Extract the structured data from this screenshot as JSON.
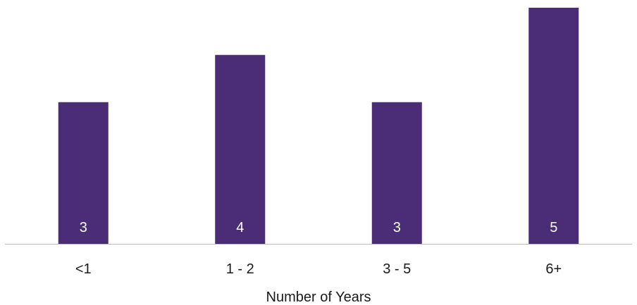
{
  "chart_data": {
    "type": "bar",
    "categories": [
      "<1",
      "1 - 2",
      "3 - 5",
      "6+"
    ],
    "values": [
      3,
      4,
      3,
      5
    ],
    "title": "",
    "xlabel": "Number of Years",
    "ylabel": "",
    "ylim": [
      0,
      5
    ],
    "grid": false,
    "legend": "none",
    "bar_color": "#4a2d76",
    "axis_color": "#bfbfbf",
    "data_label_color": "#ffffff"
  }
}
